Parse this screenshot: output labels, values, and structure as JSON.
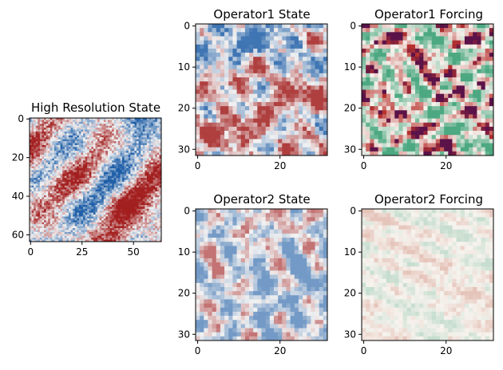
{
  "chart_data": [
    {
      "type": "heatmap",
      "title": "High Resolution State",
      "grid_size": 64,
      "colormap": "diverging red-white-blue",
      "xticks": [
        0,
        25,
        50
      ],
      "yticks": [
        0,
        20,
        40,
        60
      ],
      "xlim": [
        -0.5,
        63.5
      ],
      "ylim": [
        63.5,
        -0.5
      ]
    },
    {
      "type": "heatmap",
      "title": "Operator1 State",
      "grid_size": 32,
      "colormap": "diverging red-white-blue",
      "xticks": [
        0,
        20
      ],
      "yticks": [
        0,
        10,
        20,
        30
      ],
      "xlim": [
        -0.5,
        31.5
      ],
      "ylim": [
        31.5,
        -0.5
      ]
    },
    {
      "type": "heatmap",
      "title": "Operator1 Forcing",
      "grid_size": 32,
      "colormap": "diverging green-white-red-purple",
      "xticks": [
        0,
        20
      ],
      "yticks": [
        0,
        10,
        20,
        30
      ],
      "xlim": [
        -0.5,
        31.5
      ],
      "ylim": [
        31.5,
        -0.5
      ]
    },
    {
      "type": "heatmap",
      "title": "Operator2 State",
      "grid_size": 32,
      "colormap": "diverging red-white-blue",
      "xticks": [
        0,
        20
      ],
      "yticks": [
        0,
        10,
        20,
        30
      ],
      "xlim": [
        -0.5,
        31.5
      ],
      "ylim": [
        31.5,
        -0.5
      ]
    },
    {
      "type": "heatmap",
      "title": "Operator2 Forcing",
      "grid_size": 32,
      "colormap": "diverging green-white-red (low amplitude)",
      "xticks": [
        0,
        20
      ],
      "yticks": [
        0,
        10,
        20,
        30
      ],
      "xlim": [
        -0.5,
        31.5
      ],
      "ylim": [
        31.5,
        -0.5
      ]
    }
  ],
  "colors": {
    "state_negative": "#1f5fa8",
    "state_neutral": "#f2f2f2",
    "state_positive": "#a31f1f",
    "forcing_negative": "#2e9b6e",
    "forcing_neutral": "#f7f3ee",
    "forcing_positive": "#b8322e",
    "forcing_extreme": "#5a1248"
  }
}
